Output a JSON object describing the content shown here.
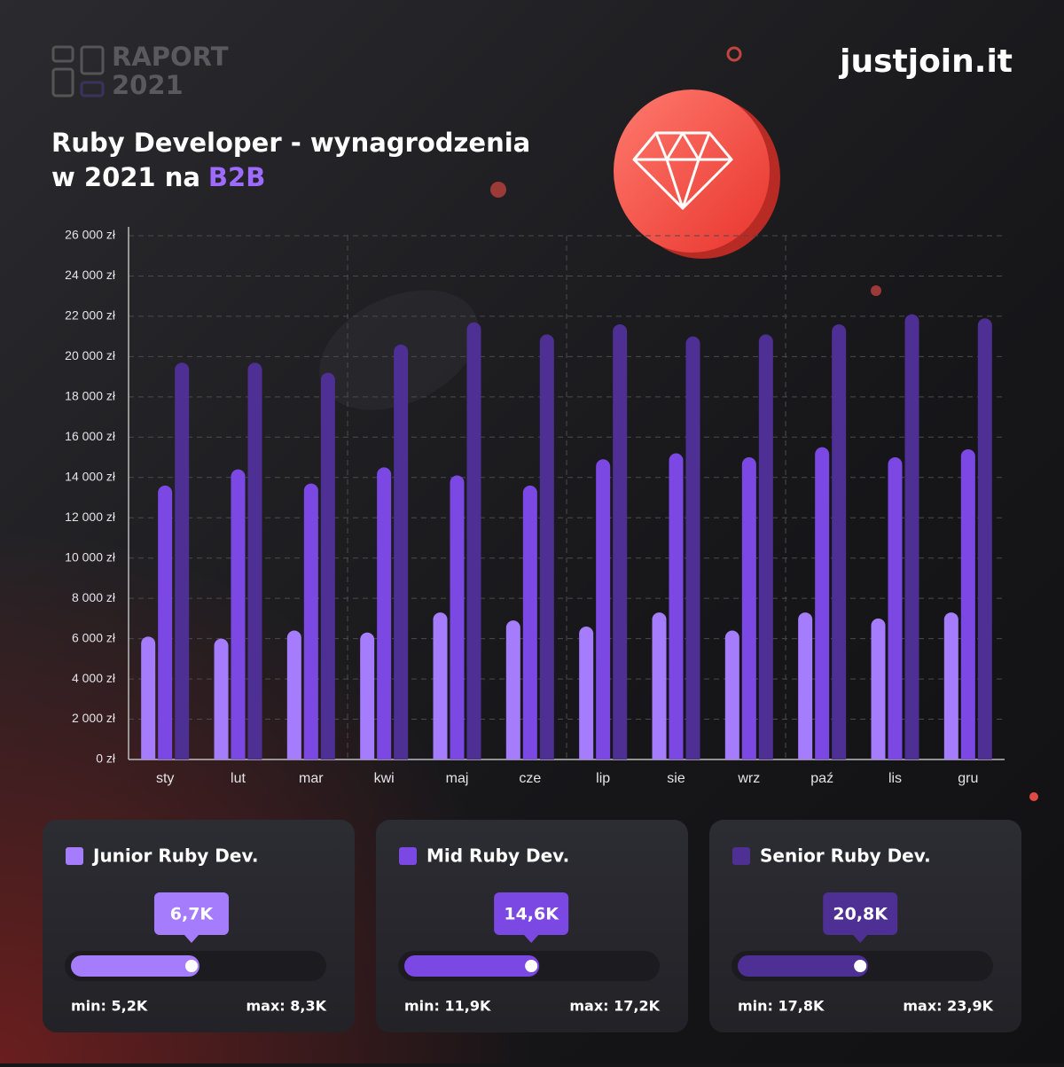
{
  "header": {
    "report": "RAPORT",
    "year": "2021",
    "brand": "justjoin.it"
  },
  "chart_data": {
    "type": "bar",
    "title": {
      "line1": "Ruby Developer - wynagrodzenia",
      "line2": "w 2021 na",
      "highlight": "B2B"
    },
    "categories": [
      "sty",
      "lut",
      "mar",
      "kwi",
      "maj",
      "cze",
      "lip",
      "sie",
      "wrz",
      "paź",
      "lis",
      "gru"
    ],
    "series": [
      {
        "name": "Junior Ruby Dev.",
        "color": "#a57cfb",
        "values": [
          6100,
          6000,
          6400,
          6300,
          7300,
          6900,
          6600,
          7300,
          6400,
          7300,
          7000,
          7300
        ]
      },
      {
        "name": "Mid Ruby Dev.",
        "color": "#7c48e4",
        "values": [
          13600,
          14400,
          13700,
          14500,
          14100,
          13600,
          14900,
          15200,
          15000,
          15500,
          15000,
          15400
        ]
      },
      {
        "name": "Senior Ruby Dev.",
        "color": "#4e2f94",
        "values": [
          19700,
          19700,
          19200,
          20600,
          21700,
          21100,
          21600,
          21000,
          21100,
          21600,
          22100,
          21900
        ]
      }
    ],
    "ylim": [
      0,
      26000
    ],
    "yticks": [
      {
        "value": 0,
        "label": "0 zł"
      },
      {
        "value": 2000,
        "label": "2 000 zł"
      },
      {
        "value": 4000,
        "label": "4 000 zł"
      },
      {
        "value": 6000,
        "label": "6 000 zł"
      },
      {
        "value": 8000,
        "label": "8 000 zł"
      },
      {
        "value": 10000,
        "label": "10 000 zł"
      },
      {
        "value": 12000,
        "label": "12 000 zł"
      },
      {
        "value": 14000,
        "label": "14 000 zł"
      },
      {
        "value": 16000,
        "label": "16 000 zł"
      },
      {
        "value": 18000,
        "label": "18 000 zł"
      },
      {
        "value": 20000,
        "label": "20 000 zł"
      },
      {
        "value": 22000,
        "label": "22 000 zł"
      },
      {
        "value": 24000,
        "label": "24 000 zł"
      },
      {
        "value": 26000,
        "label": "26 000 zł"
      }
    ],
    "grid": true,
    "cards": [
      {
        "value": 6700,
        "value_label": "6,7K",
        "min": 5200,
        "min_label": "min: 5,2K",
        "max": 8300,
        "max_label": "max: 8,3K"
      },
      {
        "value": 14600,
        "value_label": "14,6K",
        "min": 11900,
        "min_label": "min: 11,9K",
        "max": 17200,
        "max_label": "max: 17,2K"
      },
      {
        "value": 20800,
        "value_label": "20,8K",
        "min": 17800,
        "min_label": "min: 17,8K",
        "max": 23900,
        "max_label": "max: 23,9K"
      }
    ]
  }
}
